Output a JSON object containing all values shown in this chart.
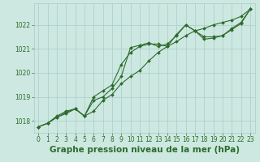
{
  "title": "Graphe pression niveau de la mer (hPa)",
  "bg_color": "#cce8e0",
  "grid_color": "#aacccc",
  "line_color": "#2d6b2d",
  "xlim": [
    -0.5,
    23.5
  ],
  "ylim": [
    1017.5,
    1022.9
  ],
  "yticks": [
    1018,
    1019,
    1020,
    1021,
    1022
  ],
  "xticks": [
    0,
    1,
    2,
    3,
    4,
    5,
    6,
    7,
    8,
    9,
    10,
    11,
    12,
    13,
    14,
    15,
    16,
    17,
    18,
    19,
    20,
    21,
    22,
    23
  ],
  "line1_x": [
    0,
    1,
    2,
    3,
    4,
    5,
    6,
    7,
    8,
    9,
    10,
    11,
    12,
    13,
    14,
    15,
    16,
    17,
    18,
    19,
    20,
    21,
    22,
    23
  ],
  "line1_y": [
    1017.75,
    1017.9,
    1018.15,
    1018.3,
    1018.5,
    1018.2,
    1018.4,
    1018.85,
    1019.1,
    1019.55,
    1019.85,
    1020.1,
    1020.5,
    1020.85,
    1021.1,
    1021.3,
    1021.55,
    1021.75,
    1021.85,
    1022.0,
    1022.1,
    1022.2,
    1022.35,
    1022.65
  ],
  "line2_x": [
    0,
    1,
    2,
    3,
    4,
    5,
    6,
    7,
    8,
    9,
    10,
    11,
    12,
    13,
    14,
    15,
    16,
    17,
    18,
    19,
    20,
    21,
    22,
    23
  ],
  "line2_y": [
    1017.75,
    1017.9,
    1018.15,
    1018.35,
    1018.5,
    1018.2,
    1019.0,
    1019.25,
    1019.5,
    1020.35,
    1020.85,
    1021.1,
    1021.2,
    1021.2,
    1021.1,
    1021.6,
    1022.0,
    1021.75,
    1021.5,
    1021.5,
    1021.55,
    1021.8,
    1022.05,
    1022.65
  ],
  "line3_x": [
    0,
    1,
    2,
    3,
    4,
    5,
    6,
    7,
    8,
    9,
    10,
    11,
    12,
    13,
    14,
    15,
    16,
    17,
    18,
    19,
    20,
    21,
    22,
    23
  ],
  "line3_y": [
    1017.75,
    1017.9,
    1018.2,
    1018.4,
    1018.5,
    1018.2,
    1018.85,
    1019.0,
    1019.35,
    1019.85,
    1021.05,
    1021.15,
    1021.25,
    1021.1,
    1021.2,
    1021.55,
    1022.0,
    1021.75,
    1021.4,
    1021.45,
    1021.55,
    1021.85,
    1022.1,
    1022.65
  ],
  "title_fontsize": 7.5,
  "tick_fontsize": 5.5,
  "marker": "D",
  "marker_size": 2.0,
  "linewidth": 0.8
}
